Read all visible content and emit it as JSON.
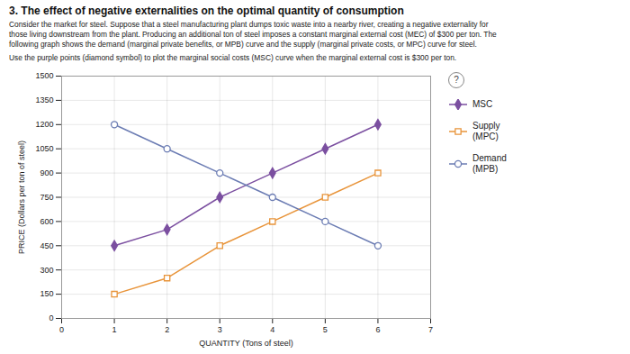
{
  "chart_data": {
    "type": "line",
    "title": "3. The effect of negative externalities on the optimal quantity of consumption",
    "subtitle": [
      "Consider the market for steel. Suppose that a steel manufacturing plant dumps toxic waste into a nearby river, creating a negative externality for",
      "those living downstream from the plant. Producing an additional ton of steel imposes a constant marginal external cost (MEC) of $300 per ton. The",
      "following graph shows the demand (marginal private benefits, or MPB) curve and the supply (marginal private costs, or MPC) curve for steel.",
      "Use the purple points (diamond symbol) to plot the marginal social costs (MSC) curve when the marginal external cost is $300 per ton."
    ],
    "annotations": [
      "?"
    ],
    "x_label": "QUANTITY (Tons of steel)",
    "y_label": "PRICE (Dollars per ton of steel)",
    "x": [
      1,
      2,
      3,
      4,
      5,
      6
    ],
    "series": [
      {
        "name": "MSC",
        "color": "#7b4fa0",
        "marker": "diamond",
        "values": [
          450,
          550,
          750,
          900,
          1050,
          1200
        ]
      },
      {
        "name": "Supply\n(MPC)",
        "color": "#e8943a",
        "marker": "square-open",
        "values": [
          150,
          250,
          450,
          600,
          750,
          900
        ]
      },
      {
        "name": "Demand\n(MPB)",
        "color": "#6b7cb3",
        "marker": "circle-open",
        "values": [
          1200,
          1050,
          900,
          750,
          600,
          450
        ]
      }
    ],
    "xlim": [
      0,
      7
    ],
    "ylim": [
      0,
      1500
    ],
    "xticks": [
      0,
      1,
      2,
      3,
      4,
      5,
      6,
      7
    ],
    "yticks": [
      0,
      150,
      300,
      450,
      600,
      750,
      900,
      1050,
      1200,
      1350,
      1500
    ],
    "grid": true,
    "legend": "right"
  }
}
